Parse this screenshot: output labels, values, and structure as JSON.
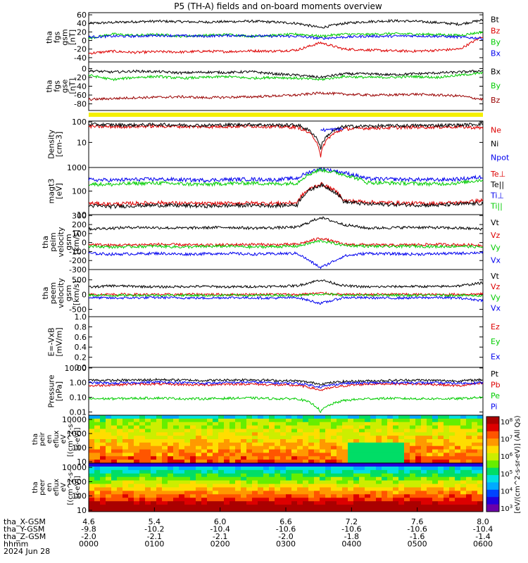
{
  "title": "P5 (TH-A) fields and on-board moments overview",
  "chart_data": {
    "type": "line",
    "panels": [
      {
        "id": "fgs_gsm",
        "ylabel": [
          "tha",
          "fgs",
          "gsm",
          "[nT]"
        ],
        "ylim": [
          -50,
          65
        ],
        "yticks": [
          "60",
          "40",
          "20",
          "0",
          "-20",
          "-40"
        ],
        "ytick_values": [
          60,
          40,
          20,
          0,
          -20,
          -40
        ],
        "legend": [
          {
            "label": "Bt",
            "color": "#000000"
          },
          {
            "label": "Bz",
            "color": "#dd0000"
          },
          {
            "label": "By",
            "color": "#00cc00"
          },
          {
            "label": "Bx",
            "color": "#0000ee"
          }
        ],
        "series": [
          {
            "name": "Bt",
            "values": [
              40,
              42,
              44,
              45,
              44,
              43,
              44,
              45,
              43,
              40,
              30,
              40,
              44,
              46,
              45,
              42,
              38,
              48
            ]
          },
          {
            "name": "Bz",
            "values": [
              -30,
              -25,
              -28,
              -26,
              -27,
              -25,
              -26,
              -24,
              -25,
              -22,
              -5,
              -20,
              -22,
              -24,
              -25,
              -23,
              -20,
              10
            ]
          },
          {
            "name": "By",
            "values": [
              5,
              15,
              12,
              14,
              10,
              12,
              14,
              10,
              12,
              15,
              10,
              15,
              14,
              16,
              15,
              14,
              12,
              20
            ]
          },
          {
            "name": "Bx",
            "values": [
              8,
              10,
              10,
              12,
              11,
              10,
              12,
              11,
              10,
              10,
              5,
              8,
              10,
              10,
              11,
              10,
              8,
              5
            ]
          }
        ]
      },
      {
        "id": "fgs_gse",
        "ylabel": [
          "tha",
          "fgs",
          "gse",
          "[nT]"
        ],
        "ylim": [
          -95,
          15
        ],
        "yticks": [
          "0",
          "-20",
          "-40",
          "-60",
          "-80"
        ],
        "ytick_values": [
          0,
          -20,
          -40,
          -60,
          -80
        ],
        "legend": [
          {
            "label": "Bx",
            "color": "#000000"
          },
          {
            "label": "By",
            "color": "#00cc00"
          },
          {
            "label": "Bz",
            "color": "#990000"
          }
        ],
        "series": [
          {
            "name": "Bx",
            "values": [
              -5,
              -8,
              -6,
              -7,
              -10,
              -8,
              -9,
              -7,
              -12,
              -15,
              -20,
              -12,
              -12,
              -14,
              -12,
              -10,
              -8,
              -5
            ]
          },
          {
            "name": "By",
            "values": [
              -15,
              -25,
              -20,
              -18,
              -22,
              -20,
              -18,
              -22,
              -20,
              -22,
              -25,
              -18,
              -20,
              -20,
              -18,
              -20,
              -15,
              -10
            ]
          },
          {
            "name": "Bz",
            "values": [
              -70,
              -68,
              -66,
              -65,
              -64,
              -66,
              -65,
              -64,
              -62,
              -60,
              -55,
              -58,
              -60,
              -60,
              -58,
              -60,
              -62,
              -70
            ]
          }
        ]
      },
      {
        "id": "density",
        "ylabel": [
          "Density",
          "[cm-3]"
        ],
        "log": true,
        "ylim": [
          0.6,
          110
        ],
        "yticks": [
          "100",
          "10"
        ],
        "ytick_values": [
          100,
          10
        ],
        "legend": [
          {
            "label": "Ne",
            "color": "#dd0000"
          },
          {
            "label": "Ni",
            "color": "#000000"
          },
          {
            "label": "Npot",
            "color": "#0000ee"
          }
        ],
        "series": [
          {
            "name": "Ne",
            "values": [
              60,
              58,
              60,
              62,
              60,
              58,
              60,
              62,
              58,
              55,
              1.5,
              45,
              50,
              52,
              55,
              56,
              58,
              50
            ]
          },
          {
            "name": "Ni",
            "values": [
              75,
              72,
              70,
              74,
              70,
              68,
              72,
              74,
              70,
              70,
              5,
              60,
              62,
              64,
              66,
              68,
              70,
              80
            ]
          },
          {
            "name": "Npot",
            "values": [
              null,
              null,
              null,
              null,
              null,
              null,
              null,
              null,
              null,
              null,
              40,
              45,
              null,
              null,
              null,
              null,
              null,
              null
            ]
          }
        ]
      },
      {
        "id": "temperature",
        "ylabel": [
          "magt3",
          "[eV]"
        ],
        "log": true,
        "ylim": [
          10,
          1000
        ],
        "yticks": [
          "1000",
          "100",
          "10"
        ],
        "ytick_values": [
          1000,
          100,
          10
        ],
        "legend": [
          {
            "label": "Te⊥",
            "color": "#dd0000"
          },
          {
            "label": "Te||",
            "color": "#000000"
          },
          {
            "label": "Ti⊥",
            "color": "#0000ee"
          },
          {
            "label": "Ti||",
            "color": "#00cc00"
          }
        ],
        "series": [
          {
            "name": "Te⊥",
            "values": [
              30,
              28,
              30,
              32,
              30,
              29,
              30,
              31,
              30,
              32,
              200,
              40,
              34,
              32,
              30,
              30,
              32,
              40
            ]
          },
          {
            "name": "Te||",
            "values": [
              24,
              22,
              24,
              25,
              24,
              23,
              24,
              25,
              24,
              26,
              180,
              35,
              28,
              27,
              26,
              25,
              28,
              30
            ]
          },
          {
            "name": "Ti⊥",
            "values": [
              300,
              290,
              310,
              320,
              300,
              290,
              310,
              320,
              300,
              350,
              900,
              600,
              330,
              320,
              310,
              300,
              320,
              400
            ]
          },
          {
            "name": "Ti||",
            "values": [
              200,
              190,
              210,
              220,
              200,
              190,
              210,
              220,
              200,
              220,
              800,
              500,
              230,
              220,
              210,
              200,
              220,
              300
            ]
          }
        ]
      },
      {
        "id": "peim_velocity",
        "ylabel": [
          "tha",
          "peim",
          "velocity",
          "gsm",
          "[km/s]"
        ],
        "ylim": [
          -300,
          310
        ],
        "yticks": [
          "300",
          "200",
          "100",
          "0",
          "-100",
          "-200",
          "-300"
        ],
        "ytick_values": [
          300,
          200,
          100,
          0,
          -100,
          -200,
          -300
        ],
        "legend": [
          {
            "label": "Vt",
            "color": "#000000"
          },
          {
            "label": "Vz",
            "color": "#dd0000"
          },
          {
            "label": "Vy",
            "color": "#00cc00"
          },
          {
            "label": "Vx",
            "color": "#0000ee"
          }
        ],
        "series": [
          {
            "name": "Vt",
            "values": [
              150,
              160,
              170,
              165,
              160,
              165,
              170,
              160,
              165,
              170,
              280,
              200,
              160,
              165,
              170,
              165,
              160,
              150
            ]
          },
          {
            "name": "Vz",
            "values": [
              -20,
              -30,
              -25,
              -20,
              -25,
              -30,
              -25,
              -20,
              -25,
              -20,
              50,
              -20,
              -25,
              -30,
              -25,
              -20,
              -25,
              -30
            ]
          },
          {
            "name": "Vy",
            "values": [
              -40,
              -50,
              -45,
              -40,
              -50,
              -45,
              -40,
              -50,
              -45,
              -40,
              20,
              -30,
              -40,
              -45,
              -40,
              -45,
              -40,
              -50
            ]
          },
          {
            "name": "Vx",
            "values": [
              -120,
              -130,
              -125,
              -120,
              -130,
              -125,
              -120,
              -130,
              -125,
              -120,
              -280,
              -150,
              -120,
              -125,
              -130,
              -125,
              -120,
              -110
            ]
          }
        ]
      },
      {
        "id": "peem_velocity",
        "ylabel": [
          "tha",
          "peem",
          "velocity",
          "gsm",
          "[km/s]"
        ],
        "ylim": [
          -750,
          850
        ],
        "yticks": [
          "500",
          "0",
          "-500"
        ],
        "ytick_values": [
          500,
          0,
          -500
        ],
        "legend": [
          {
            "label": "Vt",
            "color": "#000000"
          },
          {
            "label": "Vz",
            "color": "#dd0000"
          },
          {
            "label": "Vy",
            "color": "#00cc00"
          },
          {
            "label": "Vx",
            "color": "#0000ee"
          }
        ],
        "series": [
          {
            "name": "Vt",
            "values": [
              250,
              300,
              280,
              260,
              270,
              280,
              260,
              270,
              280,
              300,
              500,
              300,
              260,
              270,
              280,
              270,
              300,
              400
            ]
          },
          {
            "name": "Vz",
            "values": [
              0,
              10,
              5,
              0,
              5,
              10,
              0,
              5,
              10,
              0,
              50,
              0,
              5,
              10,
              5,
              0,
              10,
              20
            ]
          },
          {
            "name": "Vy",
            "values": [
              -20,
              -30,
              -20,
              -25,
              -20,
              -30,
              -20,
              -25,
              -20,
              -30,
              20,
              -20,
              -25,
              -20,
              -30,
              -20,
              -25,
              -40
            ]
          },
          {
            "name": "Vx",
            "values": [
              -100,
              -120,
              -110,
              -100,
              -110,
              -120,
              -100,
              -110,
              -120,
              -100,
              -300,
              -100,
              -110,
              -120,
              -110,
              -100,
              -120,
              -200
            ]
          }
        ]
      },
      {
        "id": "efield",
        "ylabel": [
          "E=-VxB",
          "[mV/m]"
        ],
        "ylim": [
          0.0,
          1.0
        ],
        "yticks": [
          "1.0",
          "0.8",
          "0.6",
          "0.4",
          "0.2",
          "0.0"
        ],
        "ytick_values": [
          1.0,
          0.8,
          0.6,
          0.4,
          0.2,
          0.0
        ],
        "legend": [
          {
            "label": "Ez",
            "color": "#dd0000"
          },
          {
            "label": "Ey",
            "color": "#00cc00"
          },
          {
            "label": "Ex",
            "color": "#0000ee"
          }
        ],
        "series": []
      },
      {
        "id": "pressure",
        "ylabel": [
          "Pressure",
          "[nPa]"
        ],
        "log": true,
        "ylim": [
          0.006,
          11
        ],
        "yticks": [
          "10.00",
          "1.00",
          "0.10",
          "0.01"
        ],
        "ytick_values": [
          10,
          1,
          0.1,
          0.01
        ],
        "legend": [
          {
            "label": "Pt",
            "color": "#000000"
          },
          {
            "label": "Pb",
            "color": "#dd0000"
          },
          {
            "label": "Pe",
            "color": "#00cc00"
          },
          {
            "label": "Pi",
            "color": "#0000ee"
          }
        ],
        "series": [
          {
            "name": "Pt",
            "values": [
              1.5,
              1.4,
              1.5,
              1.6,
              1.5,
              1.4,
              1.5,
              1.6,
              1.4,
              1.3,
              0.8,
              1.2,
              1.3,
              1.4,
              1.5,
              1.4,
              1.3,
              1.6
            ]
          },
          {
            "name": "Pb",
            "values": [
              0.6,
              0.7,
              0.8,
              0.8,
              0.75,
              0.7,
              0.8,
              0.8,
              0.7,
              0.65,
              0.3,
              0.6,
              0.8,
              0.85,
              0.8,
              0.75,
              0.6,
              0.9
            ]
          },
          {
            "name": "Pe",
            "values": [
              0.08,
              0.08,
              0.085,
              0.09,
              0.08,
              0.08,
              0.085,
              0.09,
              0.08,
              0.08,
              0.01,
              0.06,
              0.08,
              0.085,
              0.08,
              0.08,
              0.08,
              0.1
            ]
          },
          {
            "name": "Pi",
            "values": [
              1.0,
              0.9,
              1.0,
              1.1,
              1.0,
              0.9,
              1.0,
              1.1,
              0.95,
              0.9,
              0.5,
              0.9,
              0.95,
              1.0,
              1.0,
              0.95,
              0.9,
              1.0
            ]
          }
        ]
      }
    ],
    "spectrograms": [
      {
        "id": "peir",
        "ylabel": [
          "tha",
          "peir",
          "en",
          "eflux",
          "eV",
          "[(cm^2-s-",
          "sr-eV)]"
        ],
        "yticks": [
          "10000",
          "1000",
          "100",
          "10"
        ],
        "ytick_values": [
          10000,
          1000,
          100,
          10
        ]
      },
      {
        "id": "peer",
        "ylabel": [
          "tha",
          "peer",
          "en",
          "eflux",
          "eV",
          "[(cm^2-s-",
          "sr-eV)]"
        ],
        "yticks": [
          "10000",
          "1000",
          "100",
          "10"
        ],
        "ytick_values": [
          10000,
          1000,
          100,
          10
        ]
      }
    ],
    "colorbar": {
      "label": "[eV/(cm^2-s-sr-eV)] (All Qs)",
      "ticks": [
        "10^8",
        "10^7",
        "10^6",
        "10^5",
        "10^4",
        "10^3"
      ]
    },
    "x_axis": {
      "rows": [
        {
          "label": "tha_X-GSM",
          "values": [
            "4.6",
            "5.4",
            "6.0",
            "6.6",
            "7.2",
            "7.6",
            "8.0"
          ]
        },
        {
          "label": "tha_Y-GSM",
          "values": [
            "-9.8",
            "-10.2",
            "-10.4",
            "-10.6",
            "-10.6",
            "-10.6",
            "-10.4"
          ]
        },
        {
          "label": "tha_Z-GSM",
          "values": [
            "-2.0",
            "-2.1",
            "-2.1",
            "-2.0",
            "-1.8",
            "-1.6",
            "-1.4"
          ]
        },
        {
          "label": "hhmm",
          "values": [
            "0000",
            "0100",
            "0200",
            "0300",
            "0400",
            "0500",
            "0600"
          ]
        }
      ],
      "date": "2024 Jun 28",
      "xlim": [
        0,
        360
      ],
      "tick_minutes": [
        0,
        60,
        120,
        180,
        240,
        300,
        360
      ]
    }
  }
}
